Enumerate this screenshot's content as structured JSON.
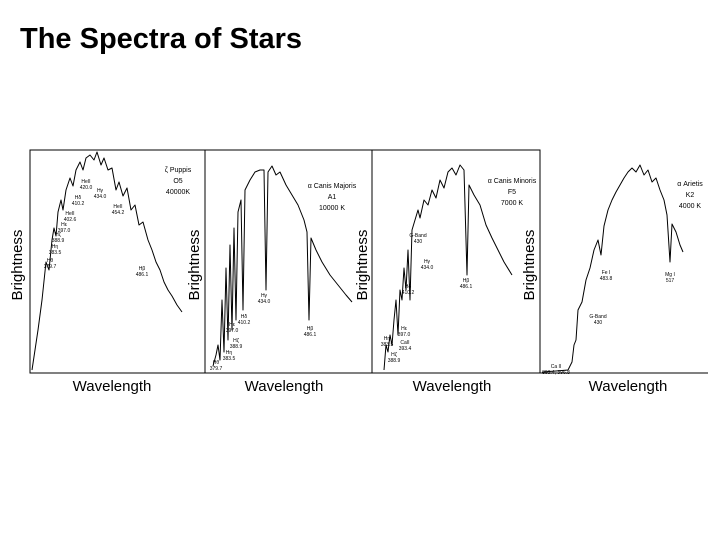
{
  "slide": {
    "title": "The Spectra of Stars",
    "panels": [
      {
        "y_axis_label": "Brightness",
        "x_axis_label": "Wavelength",
        "star": [
          "ζ Puppis",
          "O5",
          "40000K"
        ],
        "lines": [
          {
            "name": "HeII",
            "wavelength": "420.0"
          },
          {
            "name": "Hγ",
            "wavelength": "434.0"
          },
          {
            "name": "Hδ",
            "wavelength": "410.2"
          },
          {
            "name": "HeII",
            "wavelength": "402.6"
          },
          {
            "name": "Hε",
            "wavelength": "397.0"
          },
          {
            "name": "Hζ",
            "wavelength": "388.9"
          },
          {
            "name": "Hη",
            "wavelength": "383.5"
          },
          {
            "name": "Hθ",
            "wavelength": "379.7"
          },
          {
            "name": "HeII",
            "wavelength": "454.2"
          },
          {
            "name": "Hβ",
            "wavelength": "486.1"
          }
        ]
      },
      {
        "y_axis_label": "Brightness",
        "x_axis_label": "Wavelength",
        "star": [
          "α Canis Majoris",
          "A1",
          "10000 K"
        ],
        "lines": [
          {
            "name": "Hγ",
            "wavelength": "434.0"
          },
          {
            "name": "Hδ",
            "wavelength": "410.2"
          },
          {
            "name": "Hε",
            "wavelength": "397.0"
          },
          {
            "name": "Hζ",
            "wavelength": "388.9"
          },
          {
            "name": "Hη",
            "wavelength": "383.5"
          },
          {
            "name": "Hθ",
            "wavelength": "379.7"
          },
          {
            "name": "Hβ",
            "wavelength": "486.1"
          }
        ]
      },
      {
        "y_axis_label": "Brightness",
        "x_axis_label": "Wavelength",
        "star": [
          "α Canis Minoris",
          "F5",
          "7000 K"
        ],
        "lines": [
          {
            "name": "G-Band",
            "wavelength": "430"
          },
          {
            "name": "Hγ",
            "wavelength": "434.0"
          },
          {
            "name": "Hδ",
            "wavelength": "410.2"
          },
          {
            "name": "Hε",
            "wavelength": "397.0"
          },
          {
            "name": "CaII",
            "wavelength": "393.4"
          },
          {
            "name": "Hη",
            "wavelength": "383.5"
          },
          {
            "name": "Hζ",
            "wavelength": "388.9"
          },
          {
            "name": "Hβ",
            "wavelength": "486.1"
          }
        ]
      },
      {
        "y_axis_label": "Brightness",
        "x_axis_label": "Wavelength",
        "star": [
          "α Arietis",
          "K2",
          "4000 K"
        ],
        "lines": [
          {
            "name": "Fe I",
            "wavelength": "483.8"
          },
          {
            "name": "Mg I",
            "wavelength": "517"
          },
          {
            "name": "G-Band",
            "wavelength": "430"
          },
          {
            "name": "Ca II",
            "wavelength": "393.4, 396.8"
          }
        ]
      }
    ]
  }
}
